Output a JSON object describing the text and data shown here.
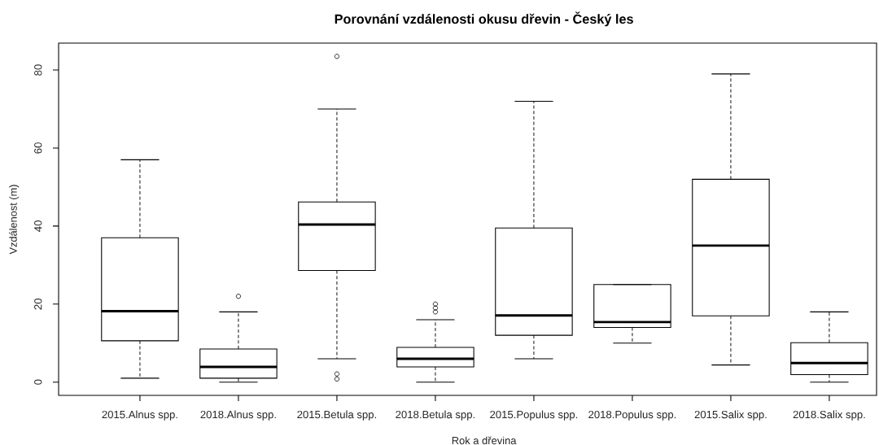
{
  "chart_data": {
    "type": "box",
    "title": "Porovnání vzdálenosti okusu dřevin - Český les",
    "xlabel": "Rok a dřevina",
    "ylabel": "Vzdálenost (m)",
    "categories": [
      "2015.Alnus spp.",
      "2018.Alnus spp.",
      "2015.Betula spp.",
      "2018.Betula spp.",
      "2015.Populus spp.",
      "2018.Populus spp.",
      "2015.Salix spp.",
      "2018.Salix spp."
    ],
    "boxes": [
      {
        "low": 1,
        "q1": 10.6,
        "median": 18.2,
        "q3": 37,
        "high": 57
      },
      {
        "low": 0,
        "q1": 1,
        "median": 3.9,
        "q3": 8.5,
        "high": 18,
        "outliers": [
          22
        ]
      },
      {
        "low": 6,
        "q1": 28.6,
        "median": 40.4,
        "q3": 46.2,
        "high": 70,
        "outliers": [
          83.5,
          2.1,
          0.8
        ]
      },
      {
        "low": 0,
        "q1": 3.9,
        "median": 6,
        "q3": 8.9,
        "high": 16,
        "outliers": [
          18,
          19,
          20
        ]
      },
      {
        "low": 6,
        "q1": 12,
        "median": 17.1,
        "q3": 39.5,
        "high": 72
      },
      {
        "low": 10,
        "q1": 14,
        "median": 15.4,
        "q3": 25,
        "high": 25
      },
      {
        "low": 4.4,
        "q1": 17,
        "median": 35,
        "q3": 52,
        "high": 79
      },
      {
        "low": 0,
        "q1": 1.9,
        "median": 4.9,
        "q3": 10.1,
        "high": 18
      }
    ],
    "ylim": [
      -3.4,
      86.9
    ],
    "yticks": [
      0,
      20,
      40,
      60,
      80
    ]
  }
}
